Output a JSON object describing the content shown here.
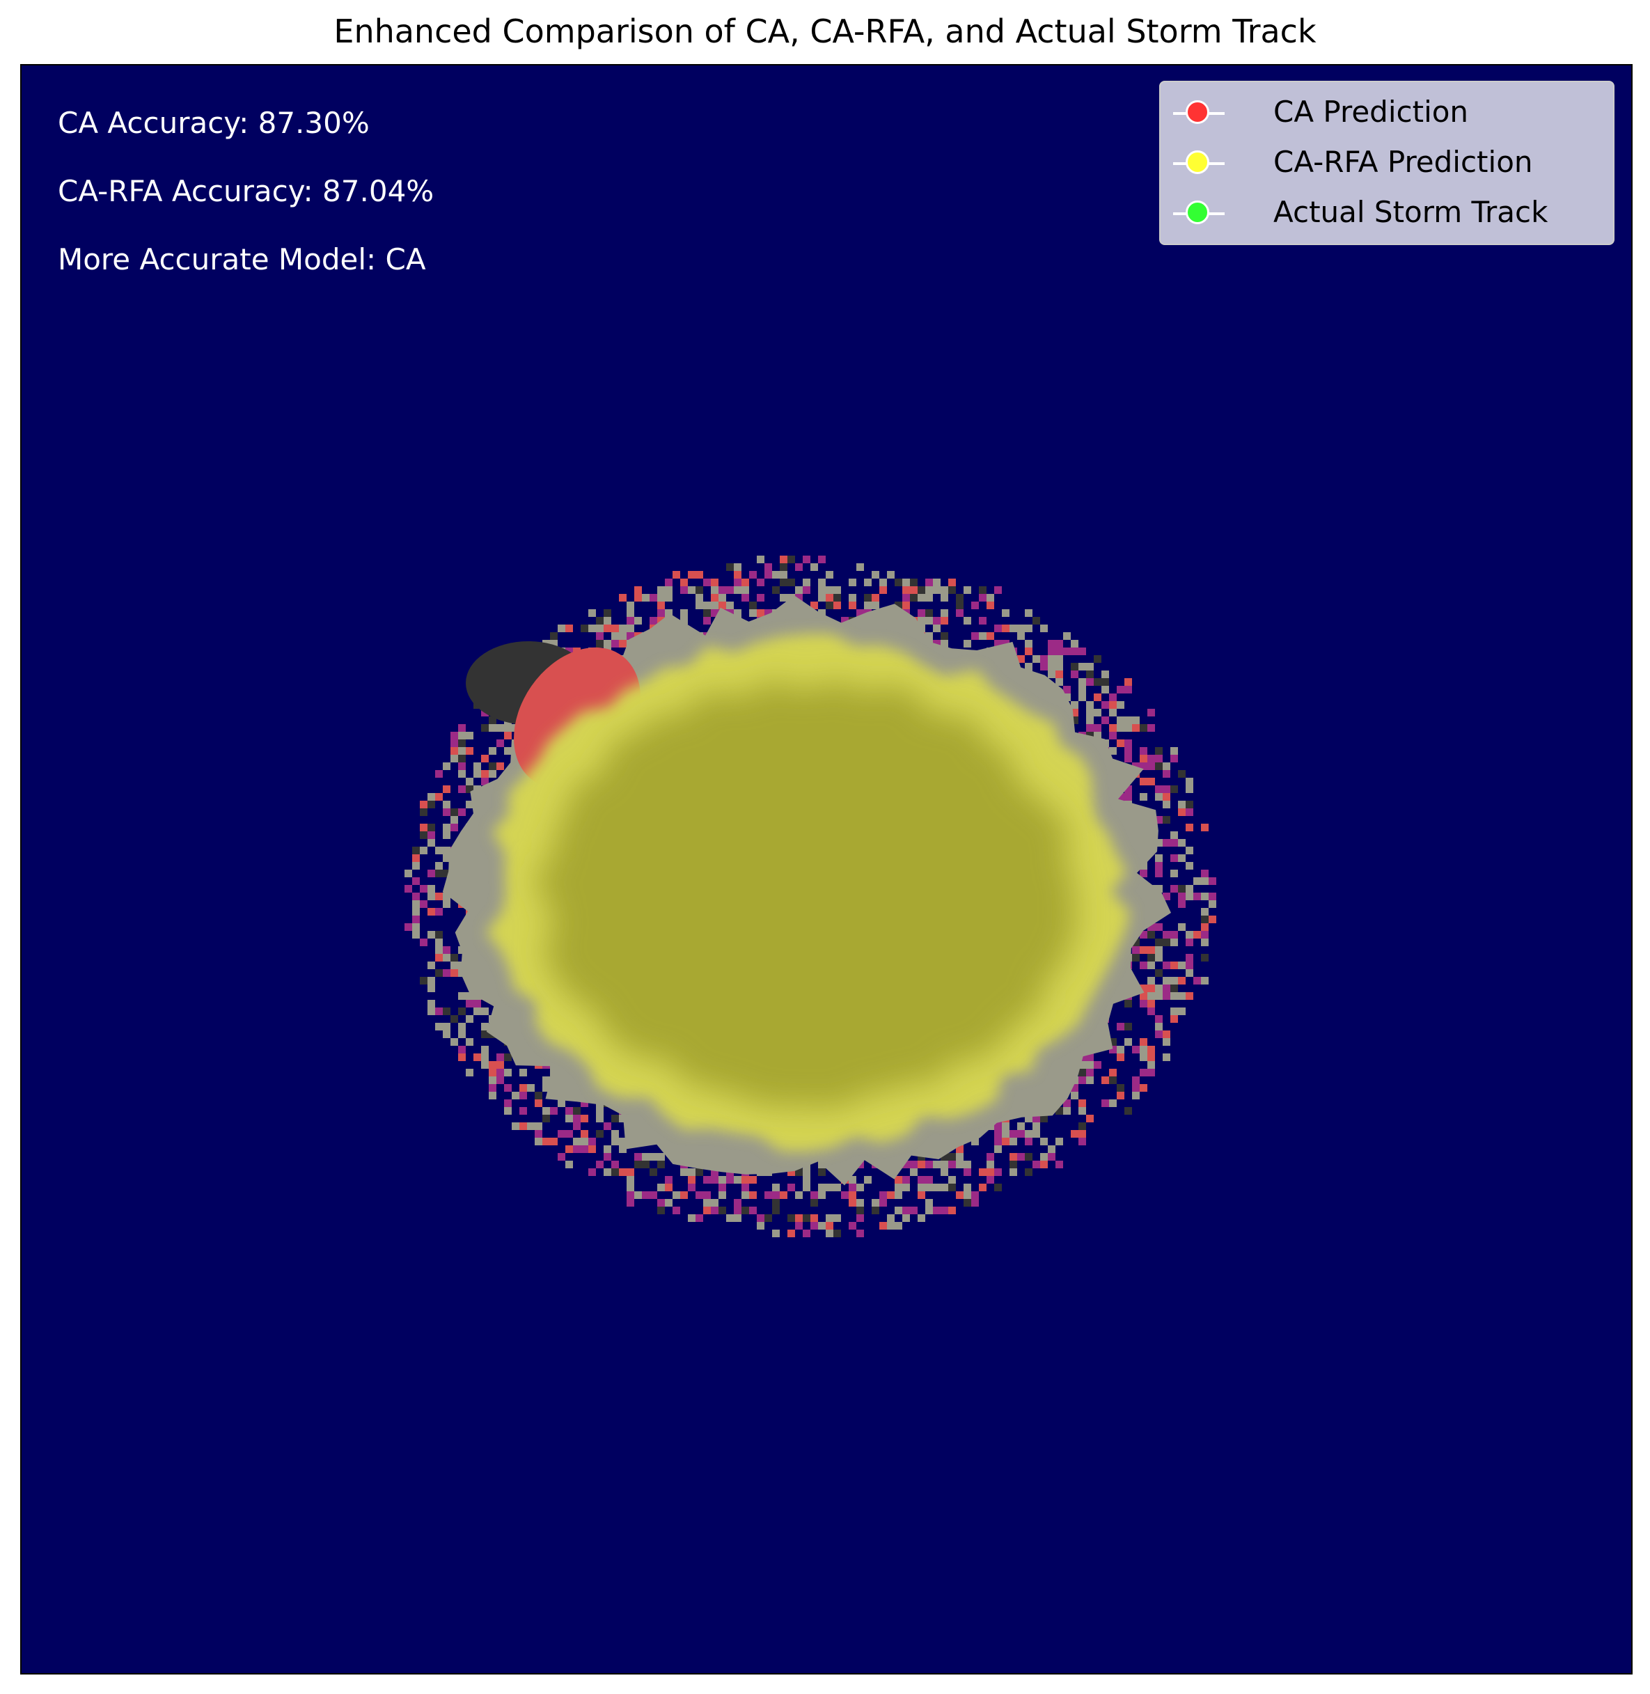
{
  "chart_data": {
    "type": "heatmap",
    "title": "Enhanced Comparison of CA, CA-RFA, and Actual Storm Track",
    "xlabel": "",
    "ylabel": "",
    "axes_visible": false,
    "grid": false,
    "legend_placement": "top-right",
    "background_color": "#000060",
    "annotations": [
      "CA Accuracy: 87.30%",
      "CA-RFA Accuracy: 87.04%",
      "More Accurate Model: CA"
    ],
    "ca_accuracy_percent": 87.3,
    "ca_rfa_accuracy_percent": 87.04,
    "more_accurate_model": "CA",
    "series": [
      {
        "name": "CA Prediction",
        "color": "#ff3333"
      },
      {
        "name": "CA-RFA Prediction",
        "color": "#ffff33"
      },
      {
        "name": "Actual Storm Track",
        "color": "#33ff33"
      }
    ],
    "overlay_colors": {
      "all_agree": "#a8a832",
      "inner_glow": "#d4d452",
      "track_only": "#9a9a8a",
      "ca_only": "#d85050",
      "rfa_only": "#9c2a86",
      "dark": "#333333"
    }
  }
}
